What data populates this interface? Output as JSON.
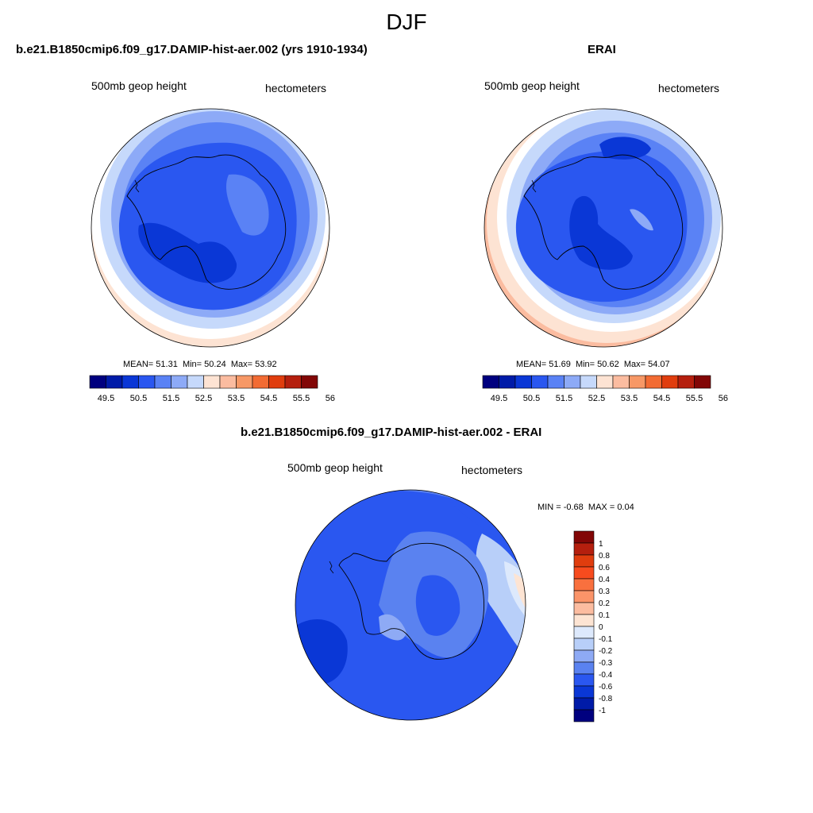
{
  "page_title": "DJF",
  "panels": [
    {
      "title": "b.e21.B1850cmip6.f09_g17.DAMIP-hist-aer.002 (yrs 1910-1934)",
      "left_label": "500mb geop height",
      "right_label": "hectometers",
      "stats": {
        "mean_label": "MEAN=",
        "mean": "51.31",
        "min_label": "Min=",
        "min": "50.24",
        "max_label": "Max=",
        "max": "53.92"
      }
    },
    {
      "title": "ERAI",
      "left_label": "500mb geop height",
      "right_label": "hectometers",
      "stats": {
        "mean_label": "MEAN=",
        "mean": "51.69",
        "min_label": "Min=",
        "min": "50.62",
        "max_label": "Max=",
        "max": "54.07"
      }
    },
    {
      "title": "b.e21.B1850cmip6.f09_g17.DAMIP-hist-aer.002 - ERAI",
      "left_label": "500mb geop height",
      "right_label": "hectometers",
      "stats": {
        "min_label": "MIN =",
        "min": "-0.68",
        "max_label": "MAX =",
        "max": "0.04"
      }
    }
  ],
  "colorbar_h": {
    "colors": [
      "#00007f",
      "#001ba8",
      "#0a37d6",
      "#2a57f0",
      "#5a82f5",
      "#8daaf7",
      "#c6d9fb",
      "#fde3d3",
      "#fbbca0",
      "#f79866",
      "#f26b33",
      "#e03d0e",
      "#b51f0e",
      "#820606"
    ],
    "labels": [
      "49.5",
      "50.5",
      "51.5",
      "52.5",
      "53.5",
      "54.5",
      "55.5",
      "56.5"
    ]
  },
  "colorbar_v": {
    "colors": [
      "#820606",
      "#b51f0e",
      "#e03d0e",
      "#f74b1e",
      "#f9703e",
      "#fb9469",
      "#fcbca0",
      "#fde4d3",
      "#dde9fc",
      "#b8cff9",
      "#8eaaf5",
      "#5a82f0",
      "#2a57f0",
      "#0a37d6",
      "#001ba8",
      "#00007f"
    ],
    "labels": [
      "1",
      "0.8",
      "0.6",
      "0.4",
      "0.3",
      "0.2",
      "0.1",
      "0",
      "-0.1",
      "-0.2",
      "-0.3",
      "-0.4",
      "-0.6",
      "-0.8",
      "-1"
    ]
  }
}
